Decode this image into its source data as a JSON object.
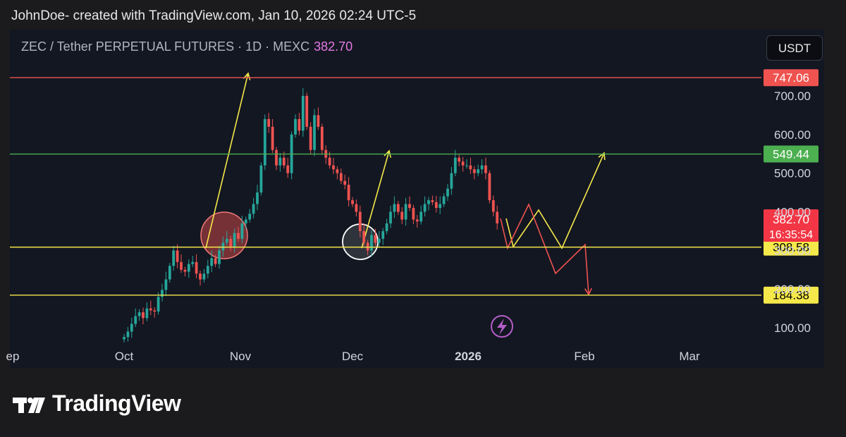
{
  "header": {
    "text": "JohnDoe- created with TradingView.com, Jan 10, 2026 02:24 UTC-5"
  },
  "symbol": {
    "title": "ZEC / Tether PERPETUAL FUTURES · 1D · MEXC",
    "last_price": "382.70"
  },
  "currency_button": "USDT",
  "footer": {
    "brand": "TradingView"
  },
  "colors": {
    "up": "#26a69a",
    "down": "#ef5350",
    "yellow": "#f5e84a",
    "green_line": "#4caf50",
    "red_line": "#ef5350",
    "purple": "#b45ec8"
  },
  "chart_data": {
    "type": "candlestick",
    "title": "ZEC / Tether PERPETUAL FUTURES · 1D · MEXC",
    "x_ticks": [
      "ep",
      "Oct",
      "Nov",
      "Dec",
      "2026",
      "Feb",
      "Mar"
    ],
    "y_ticks": [
      "100.00",
      "200.00",
      "300.00",
      "400.00",
      "500.00",
      "600.00",
      "700.00"
    ],
    "ylim": [
      50,
      790
    ],
    "scale": "linear",
    "grid": false,
    "candles_close": [
      76,
      90,
      110,
      130,
      140,
      125,
      150,
      145,
      142,
      180,
      198,
      225,
      260,
      300,
      270,
      250,
      245,
      265,
      270,
      240,
      225,
      240,
      260,
      280,
      265,
      300,
      320,
      330,
      310,
      345,
      330,
      370,
      380,
      395,
      420,
      450,
      520,
      640,
      620,
      560,
      520,
      540,
      520,
      500,
      600,
      640,
      610,
      700,
      620,
      560,
      650,
      620,
      560,
      540,
      520,
      510,
      500,
      480,
      470,
      430,
      420,
      400,
      350,
      320,
      300,
      340,
      320,
      330,
      350,
      370,
      400,
      420,
      400,
      380,
      420,
      410,
      380,
      375,
      400,
      420,
      430,
      425,
      410,
      420,
      440,
      460,
      500,
      540,
      530,
      520,
      520,
      510,
      500,
      510,
      520,
      500,
      430,
      400,
      370
    ],
    "series": [
      {
        "name": "",
        "kind": "level",
        "value": 747.06,
        "label": "747.06",
        "color": "red"
      },
      {
        "name": "",
        "kind": "level",
        "value": 549.44,
        "label": "549.44",
        "color": "green"
      },
      {
        "name": "",
        "kind": "level",
        "value": 308.58,
        "label": "308.58",
        "color": "yellow"
      },
      {
        "name": "",
        "kind": "level",
        "value": 184.38,
        "label": "184.38",
        "color": "yellow"
      }
    ],
    "last_price_label": {
      "value": "382.70",
      "countdown": "16:35:54"
    }
  }
}
